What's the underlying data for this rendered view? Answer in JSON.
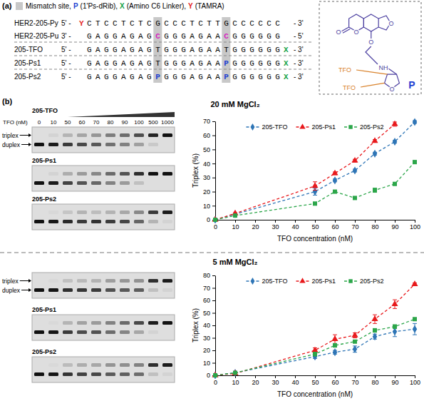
{
  "figure": {
    "panel_labels": [
      "(a)",
      "(b)"
    ],
    "mismatch_fill": "#c8c8c8",
    "mismatch": [
      8,
      16
    ],
    "key": [
      {
        "text": "Mismatch site,"
      },
      {
        "text": "P",
        "color": "#1f3fd1"
      },
      {
        "text": "(1'Ps-dRib),"
      },
      {
        "text": "X",
        "color": "#16a34a"
      },
      {
        "text": "(Amino C6 Linker),"
      },
      {
        "text": "Y",
        "color": "#e3201b"
      },
      {
        "text": "(TAMRA)"
      }
    ],
    "sequences": [
      {
        "name": "HER2-205-Py",
        "left": "5' -",
        "tag_left": "Y",
        "seq": "CTCCTCTCGCCCTCTTGCCCCCC",
        "tag_right": null,
        "right": "- 3'"
      },
      {
        "name": "HER2-205-Pu",
        "left": "3' -",
        "tag_left": null,
        "seq": "GAGGAGAGCGGGAGAACGGGGGG",
        "tag_right": null,
        "right": "- 5'",
        "mismatch_color": "#d61fc2"
      },
      {
        "name": "205-TFO",
        "left": "5' -",
        "tag_left": null,
        "seq": "GAGGAGAGTGGGAGAATGGGGGG",
        "tag_right": "X",
        "right": "- 3'"
      },
      {
        "name": "205-Ps1",
        "left": "5' -",
        "tag_left": null,
        "seq": "GAGGAGAGTGGGAGAAPGGGGGG",
        "tag_right": "X",
        "right": "- 3'"
      },
      {
        "name": "205-Ps2",
        "left": "5' -",
        "tag_left": null,
        "seq": "GAGGAGAGPGGGAGAAPGGGGGG",
        "tag_right": "X",
        "right": "- 3'"
      }
    ],
    "structure": {
      "texts": [
        "O",
        "O",
        "O",
        "O",
        "NH",
        "O",
        "TFO",
        "TFO",
        "P"
      ],
      "colors": [
        "#4b3fa0",
        "#4b3fa0",
        "#4b3fa0",
        "#4b3fa0",
        "#4b3fa0",
        "#4b3fa0",
        "#d9822b",
        "#d9822b",
        "#1f3fd1"
      ]
    },
    "sections": [
      {
        "title": "20 mM MgCl₂",
        "gel": {
          "tfo_label": "TFO (nM)",
          "lanes": [
            0,
            10,
            50,
            60,
            70,
            80,
            90,
            100,
            500,
            1000
          ],
          "band_labels": [
            "triplex",
            "duplex"
          ],
          "rows": [
            {
              "name": "205-TFO",
              "triplex": [
                0,
                5,
                20,
                28,
                35,
                47,
                55,
                70,
                90,
                100
              ]
            },
            {
              "name": "205-Ps1",
              "triplex": [
                0,
                5,
                24,
                33,
                42,
                56,
                68,
                85,
                100,
                100
              ]
            },
            {
              "name": "205-Ps2",
              "triplex": [
                0,
                3,
                12,
                20,
                16,
                21,
                26,
                41,
                80,
                95
              ]
            }
          ]
        }
      },
      {
        "title": "5 mM MgCl₂",
        "gel": {
          "band_labels": [
            "triplex",
            "duplex"
          ],
          "rows": [
            {
              "name": null,
              "triplex": [
                0,
                2,
                15,
                18,
                21,
                31,
                35,
                37,
                85,
                95
              ]
            },
            {
              "name": "205-Ps1",
              "triplex": [
                0,
                2,
                20,
                29,
                32,
                45,
                57,
                73,
                95,
                100
              ]
            },
            {
              "name": "205-Ps2",
              "triplex": [
                0,
                2,
                17,
                24,
                27,
                36,
                39,
                45,
                85,
                95
              ]
            }
          ]
        }
      }
    ]
  },
  "chart_data": [
    {
      "type": "line",
      "x_label": "TFO concentration (nM)",
      "y_label": "Triplex (%)",
      "x": [
        0,
        10,
        50,
        60,
        70,
        80,
        90,
        100
      ],
      "xlim": [
        0,
        100
      ],
      "xticks": [
        0,
        10,
        20,
        30,
        40,
        50,
        60,
        70,
        80,
        90,
        100
      ],
      "ylim": [
        0,
        70
      ],
      "yticks": [
        0,
        10,
        20,
        30,
        40,
        50,
        60,
        70
      ],
      "grid": false,
      "legend": "top",
      "series": [
        {
          "name": "205-TFO",
          "color": "#2e75b6",
          "marker": "diamond",
          "line_style": "dashed",
          "values": [
            0,
            4,
            20,
            28,
            35,
            47,
            55.5,
            69.5
          ],
          "errors": [
            0,
            0.5,
            2.5,
            1,
            1,
            1,
            1,
            1
          ]
        },
        {
          "name": "205-Ps1",
          "color": "#e8191c",
          "marker": "triangle",
          "line_style": "dashed",
          "values": [
            0,
            4.5,
            24,
            33,
            42,
            56,
            68,
            null
          ],
          "errors": [
            0,
            0.5,
            3,
            1,
            1,
            1,
            1.5,
            null
          ]
        },
        {
          "name": "205-Ps2",
          "color": "#2ca64a",
          "marker": "square",
          "line_style": "dashed",
          "values": [
            0,
            3,
            11.5,
            20,
            15.5,
            21,
            25.5,
            41
          ],
          "errors": [
            0,
            0.5,
            1,
            1,
            1,
            1.5,
            1,
            1
          ]
        }
      ]
    },
    {
      "type": "line",
      "x_label": "TFO concentration (nM)",
      "y_label": "Triplex (%)",
      "x": [
        0,
        10,
        50,
        60,
        70,
        80,
        90,
        100
      ],
      "xlim": [
        0,
        100
      ],
      "xticks": [
        0,
        10,
        20,
        30,
        40,
        50,
        60,
        70,
        80,
        90,
        100
      ],
      "ylim": [
        0,
        80
      ],
      "yticks": [
        0,
        10,
        20,
        30,
        40,
        50,
        60,
        70,
        80
      ],
      "grid": false,
      "legend": "top",
      "series": [
        {
          "name": "205-TFO",
          "color": "#2e75b6",
          "marker": "diamond",
          "line_style": "dashed",
          "values": [
            0,
            2,
            15,
            18.5,
            21,
            31,
            35,
            37
          ],
          "errors": [
            0,
            0.5,
            1.5,
            1.5,
            2.5,
            2,
            4,
            4.5
          ]
        },
        {
          "name": "205-Ps1",
          "color": "#e8191c",
          "marker": "triangle",
          "line_style": "dashed",
          "values": [
            0,
            1.5,
            20,
            29,
            32,
            45,
            57,
            73
          ],
          "errors": [
            0,
            0.5,
            2,
            3.5,
            2,
            3.5,
            3.5,
            1
          ]
        },
        {
          "name": "205-Ps2",
          "color": "#2ca64a",
          "marker": "square",
          "line_style": "dashed",
          "values": [
            0,
            2,
            17,
            24,
            27,
            36,
            39,
            45
          ],
          "errors": [
            0,
            0.5,
            1.5,
            1.5,
            1,
            1.5,
            1.5,
            1
          ]
        }
      ]
    }
  ]
}
